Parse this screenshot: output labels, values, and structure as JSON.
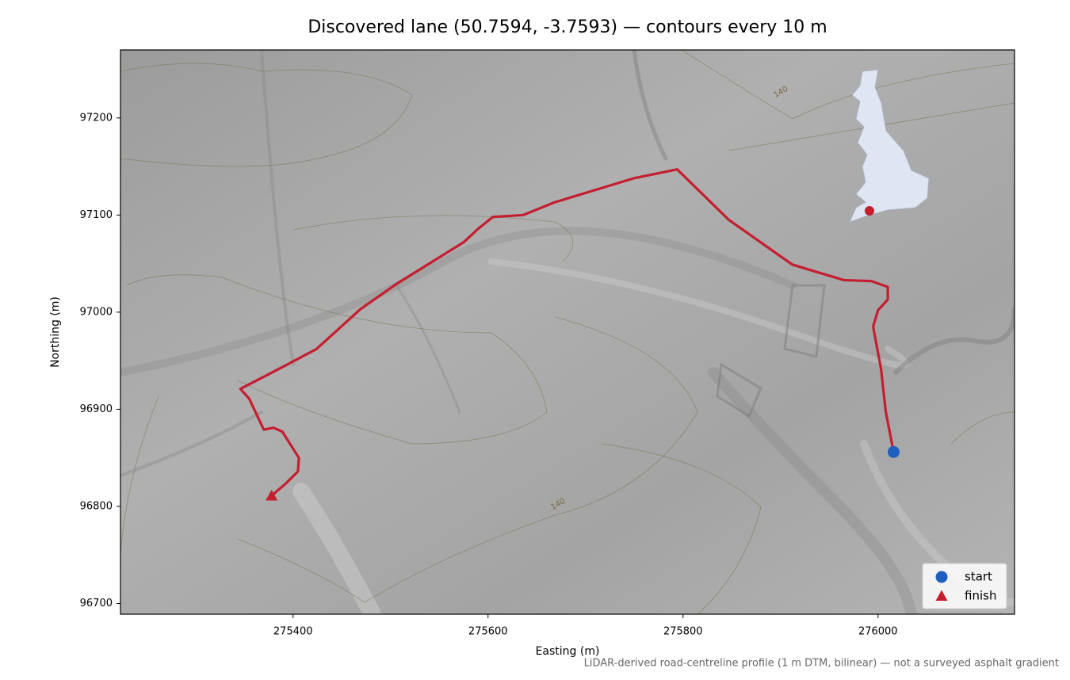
{
  "chart_data": {
    "type": "route-map",
    "title": "Discovered lane (50.7594, -3.7593) — contours every 10 m",
    "x_label": "Easting (m)",
    "y_label": "Northing (m)",
    "footnote": "LiDAR-derived road-centreline profile (1 m DTM, bilinear) — not a surveyed asphalt gradient",
    "xlim": [
      275223,
      276140
    ],
    "ylim": [
      96689,
      97270
    ],
    "xticks": [
      275400,
      275600,
      275800,
      276000
    ],
    "yticks": [
      96700,
      96800,
      96900,
      97000,
      97100,
      97200
    ],
    "route": {
      "color": "#c41e2f",
      "x": [
        276016,
        276008,
        276003,
        275995,
        276000,
        276010,
        276010,
        275993,
        275965,
        275912,
        275847,
        275794,
        275750,
        275668,
        275636,
        275605,
        275590,
        275575,
        275546,
        275506,
        275469,
        275424,
        275392,
        275346,
        275355,
        275370,
        275380,
        275389,
        275406,
        275405,
        275393,
        275378
      ],
      "y": [
        96856,
        96897,
        96942,
        96985,
        97002,
        97013,
        97026,
        97032,
        97033,
        97049,
        97095,
        97147,
        97138,
        97113,
        97100,
        97098,
        97086,
        97072,
        97054,
        97029,
        97003,
        96962,
        96945,
        96921,
        96911,
        96879,
        96881,
        96877,
        96850,
        96836,
        96824,
        96811
      ]
    },
    "markers": [
      {
        "name": "start",
        "color": "#1f5fbf",
        "shape": "circle",
        "x": 276016,
        "y": 96856
      },
      {
        "name": "finish",
        "color": "#c41e2f",
        "shape": "triangle",
        "x": 275378,
        "y": 96811
      }
    ],
    "contour_labels": [
      140,
      140
    ],
    "legend": "lower right"
  }
}
